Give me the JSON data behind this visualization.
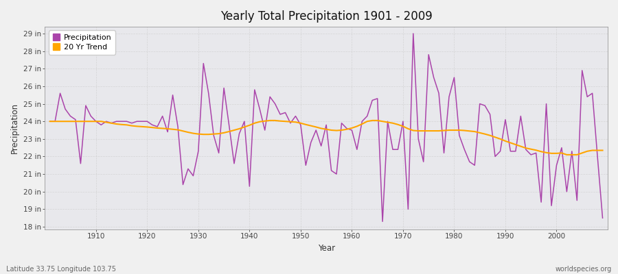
{
  "title": "Yearly Total Precipitation 1901 - 2009",
  "xlabel": "Year",
  "ylabel": "Precipitation",
  "lat_lon_label": "Latitude 33.75 Longitude 103.75",
  "watermark": "worldspecies.org",
  "legend_precipitation": "Precipitation",
  "legend_trend": "20 Yr Trend",
  "precip_color": "#AA44AA",
  "trend_color": "#FFA500",
  "bg_color": "#F0F0F0",
  "plot_bg_color": "#E8E8EC",
  "grid_color": "#CCCCCC",
  "ylim_min": 18,
  "ylim_max": 29,
  "years": [
    1901,
    1902,
    1903,
    1904,
    1905,
    1906,
    1907,
    1908,
    1909,
    1910,
    1911,
    1912,
    1913,
    1914,
    1915,
    1916,
    1917,
    1918,
    1919,
    1920,
    1921,
    1922,
    1923,
    1924,
    1925,
    1926,
    1927,
    1928,
    1929,
    1930,
    1931,
    1932,
    1933,
    1934,
    1935,
    1936,
    1937,
    1938,
    1939,
    1940,
    1941,
    1942,
    1943,
    1944,
    1945,
    1946,
    1947,
    1948,
    1949,
    1950,
    1951,
    1952,
    1953,
    1954,
    1955,
    1956,
    1957,
    1958,
    1959,
    1960,
    1961,
    1962,
    1963,
    1964,
    1965,
    1966,
    1967,
    1968,
    1969,
    1970,
    1971,
    1972,
    1973,
    1974,
    1975,
    1976,
    1977,
    1978,
    1979,
    1980,
    1981,
    1982,
    1983,
    1984,
    1985,
    1986,
    1987,
    1988,
    1989,
    1990,
    1991,
    1992,
    1993,
    1994,
    1995,
    1996,
    1997,
    1998,
    1999,
    2000,
    2001,
    2002,
    2003,
    2004,
    2005,
    2006,
    2007,
    2008,
    2009
  ],
  "precipitation": [
    24.0,
    24.0,
    25.6,
    24.7,
    24.3,
    24.1,
    21.6,
    24.9,
    24.3,
    24.0,
    23.8,
    24.0,
    23.9,
    24.0,
    24.0,
    24.0,
    23.9,
    24.0,
    24.0,
    24.0,
    23.8,
    23.7,
    24.3,
    23.4,
    25.5,
    23.7,
    20.4,
    21.3,
    20.9,
    22.3,
    27.3,
    25.6,
    23.2,
    22.2,
    25.9,
    23.8,
    21.6,
    23.3,
    24.0,
    20.3,
    25.8,
    24.7,
    23.5,
    25.4,
    25.0,
    24.4,
    24.5,
    23.9,
    24.3,
    23.8,
    21.5,
    22.8,
    23.5,
    22.6,
    23.8,
    21.2,
    21.0,
    23.9,
    23.6,
    23.5,
    22.4,
    24.0,
    24.3,
    25.2,
    25.3,
    18.3,
    24.0,
    22.4,
    22.4,
    24.0,
    19.0,
    29.0,
    23.0,
    21.7,
    27.8,
    26.5,
    25.6,
    22.2,
    25.4,
    26.5,
    23.2,
    22.4,
    21.7,
    21.5,
    25.0,
    24.9,
    24.4,
    22.0,
    22.3,
    24.1,
    22.3,
    22.3,
    24.3,
    22.4,
    22.1,
    22.2,
    19.4,
    25.0,
    19.2,
    21.5,
    22.5,
    20.0,
    22.3,
    19.5,
    26.9,
    25.4,
    25.6,
    22.0,
    18.5
  ],
  "trend": [
    24.0,
    24.0,
    24.0,
    24.0,
    24.0,
    24.0,
    24.0,
    24.0,
    24.0,
    24.0,
    24.0,
    23.95,
    23.9,
    23.85,
    23.82,
    23.8,
    23.75,
    23.72,
    23.7,
    23.68,
    23.65,
    23.62,
    23.6,
    23.58,
    23.55,
    23.52,
    23.45,
    23.38,
    23.32,
    23.28,
    23.26,
    23.26,
    23.28,
    23.3,
    23.35,
    23.42,
    23.5,
    23.58,
    23.68,
    23.78,
    23.9,
    23.98,
    24.02,
    24.05,
    24.05,
    24.02,
    24.0,
    23.98,
    23.96,
    23.9,
    23.82,
    23.75,
    23.68,
    23.6,
    23.55,
    23.5,
    23.48,
    23.5,
    23.55,
    23.62,
    23.72,
    23.85,
    24.0,
    24.05,
    24.05,
    24.0,
    23.95,
    23.9,
    23.82,
    23.72,
    23.58,
    23.48,
    23.46,
    23.46,
    23.46,
    23.46,
    23.46,
    23.48,
    23.5,
    23.5,
    23.5,
    23.48,
    23.45,
    23.42,
    23.35,
    23.28,
    23.2,
    23.1,
    23.0,
    22.88,
    22.78,
    22.68,
    22.58,
    22.48,
    22.42,
    22.36,
    22.28,
    22.22,
    22.18,
    22.18,
    22.2,
    22.1,
    22.1,
    22.1,
    22.2,
    22.3,
    22.35,
    22.35,
    22.35
  ]
}
